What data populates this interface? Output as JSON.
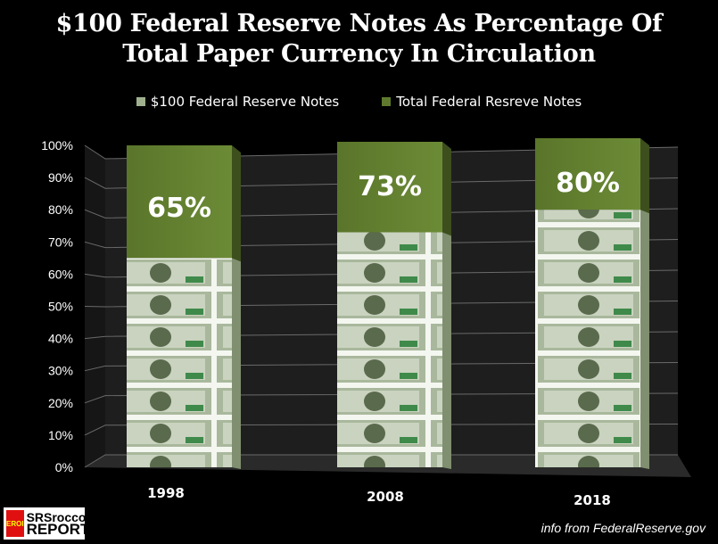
{
  "chart_data": {
    "type": "bar",
    "title": "$100 Federal Reserve Notes As Percentage Of Total Paper Currency In Circulation",
    "title_lines": [
      "$100 Federal Reserve Notes As Percentage Of",
      "Total Paper Currency In Circulation"
    ],
    "categories": [
      "1998",
      "2008",
      "2018"
    ],
    "series": [
      {
        "name": "$100 Federal Reserve Notes",
        "values": [
          65,
          73,
          80
        ],
        "color": "#9fb08f"
      },
      {
        "name": "Total Federal Resreve Notes",
        "values": [
          100,
          100,
          100
        ],
        "color": "#5f7a2e"
      }
    ],
    "data_labels": [
      "65%",
      "73%",
      "80%"
    ],
    "yticks": [
      "0%",
      "10%",
      "20%",
      "30%",
      "40%",
      "50%",
      "60%",
      "70%",
      "80%",
      "90%",
      "100%"
    ],
    "ylim": [
      0,
      100
    ],
    "grid": true,
    "legend_position": "top",
    "style": "3d"
  },
  "source": "info from FederalReserve.gov",
  "logo": {
    "badge": "EROI",
    "line1": "SRSrocco",
    "line2": "REPORT"
  }
}
